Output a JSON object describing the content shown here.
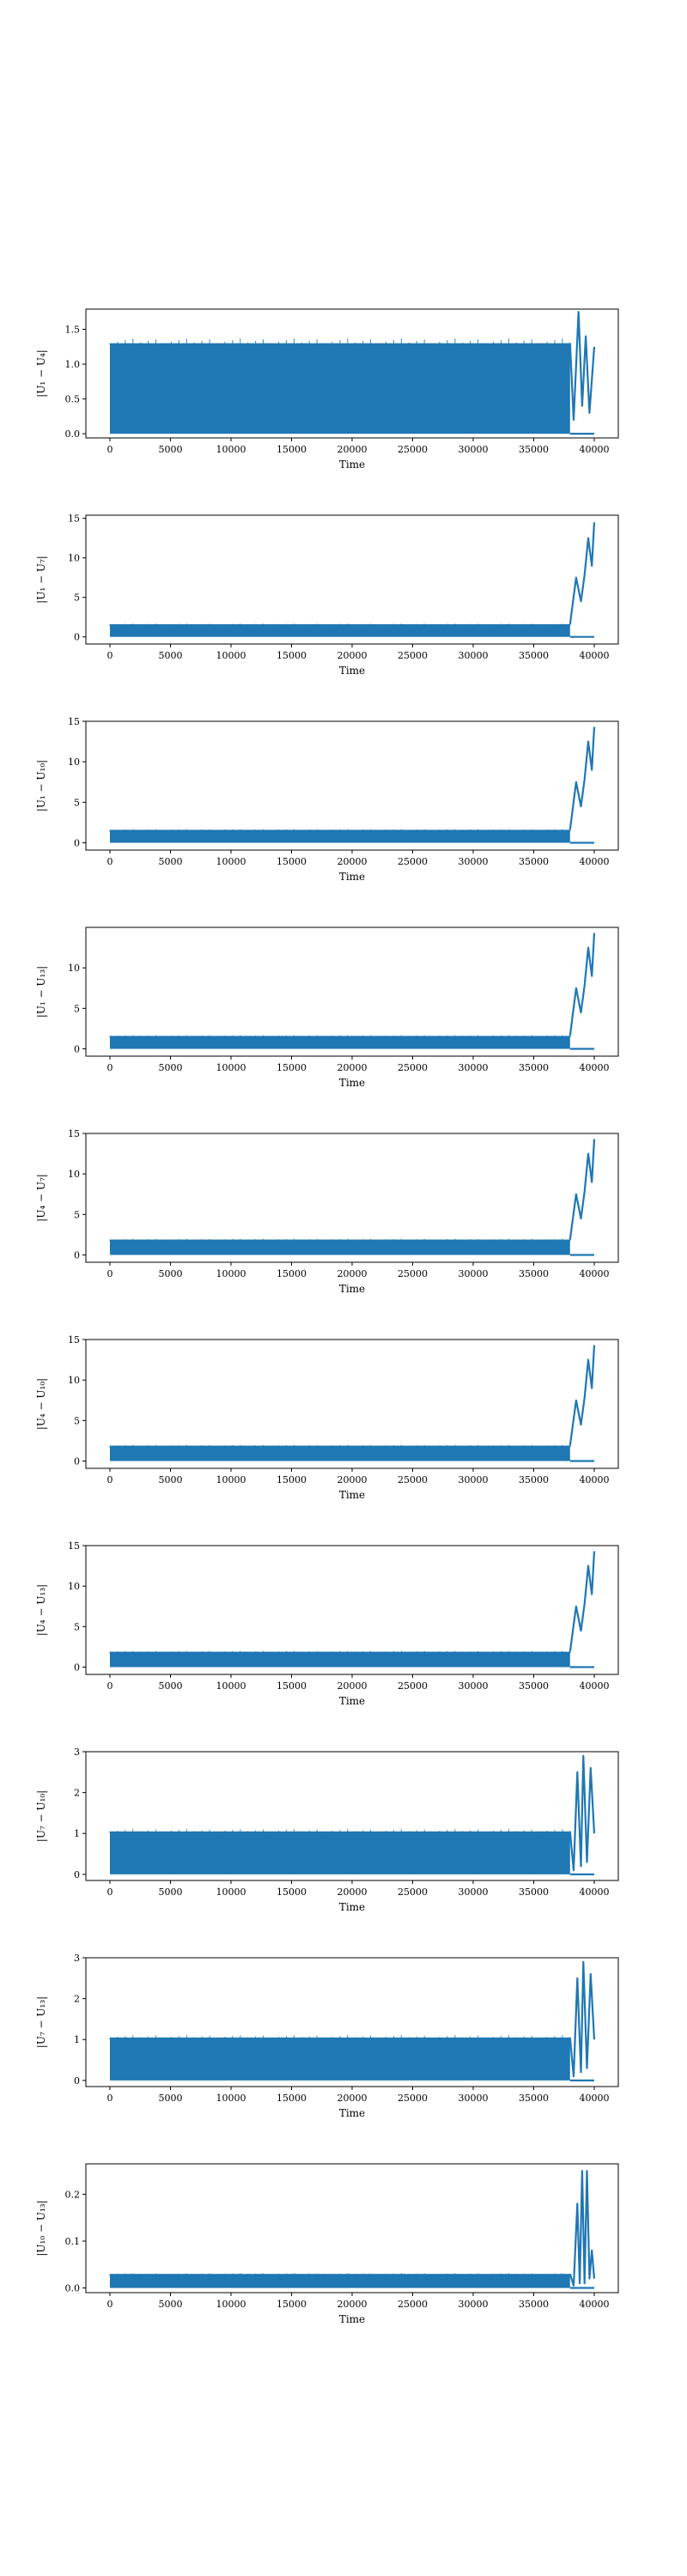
{
  "chart_data": [
    {
      "type": "line",
      "ylabel": "|U₁ − U₄|",
      "xlabel": "Time",
      "xlim": [
        0,
        40000
      ],
      "xticks": [
        0,
        5000,
        10000,
        15000,
        20000,
        25000,
        30000,
        35000,
        40000
      ],
      "ylim": [
        -0.06,
        1.79
      ],
      "yticks": [
        "0.0",
        "0.5",
        "1.0",
        "1.5"
      ],
      "ytick_values": [
        0,
        0.5,
        1.0,
        1.5
      ],
      "band": [
        0,
        1.3
      ],
      "end_segment": [
        [
          38000,
          1.3
        ],
        [
          38300,
          0.2
        ],
        [
          38700,
          1.75
        ],
        [
          39000,
          0.4
        ],
        [
          39300,
          1.4
        ],
        [
          39600,
          0.3
        ],
        [
          40000,
          1.25
        ]
      ],
      "color": "#1f77b4"
    },
    {
      "type": "line",
      "ylabel": "|U₁ − U₇|",
      "xlabel": "Time",
      "xlim": [
        0,
        40000
      ],
      "xticks": [
        0,
        5000,
        10000,
        15000,
        20000,
        25000,
        30000,
        35000,
        40000
      ],
      "ylim": [
        -0.9,
        15.4
      ],
      "yticks": [
        "0",
        "5",
        "10",
        "15"
      ],
      "ytick_values": [
        0,
        5,
        10,
        15
      ],
      "band": [
        0,
        1.6
      ],
      "end_segment": [
        [
          38000,
          1.6
        ],
        [
          38500,
          7.5
        ],
        [
          38900,
          4.5
        ],
        [
          39200,
          7.8
        ],
        [
          39500,
          12.5
        ],
        [
          39800,
          9.0
        ],
        [
          40000,
          14.5
        ]
      ],
      "color": "#1f77b4"
    },
    {
      "type": "line",
      "ylabel": "|U₁ − U₁₀|",
      "xlabel": "Time",
      "xlim": [
        0,
        40000
      ],
      "xticks": [
        0,
        5000,
        10000,
        15000,
        20000,
        25000,
        30000,
        35000,
        40000
      ],
      "ylim": [
        -0.9,
        15.0
      ],
      "yticks": [
        "0",
        "5",
        "10",
        "15"
      ],
      "ytick_values": [
        0,
        5,
        10,
        15
      ],
      "band": [
        0,
        1.6
      ],
      "end_segment": [
        [
          38000,
          1.6
        ],
        [
          38500,
          7.5
        ],
        [
          38900,
          4.5
        ],
        [
          39200,
          7.8
        ],
        [
          39500,
          12.5
        ],
        [
          39800,
          9.0
        ],
        [
          40000,
          14.3
        ]
      ],
      "color": "#1f77b4"
    },
    {
      "type": "line",
      "ylabel": "|U₁ − U₁₃|",
      "xlabel": "Time",
      "xlim": [
        0,
        40000
      ],
      "xticks": [
        0,
        5000,
        10000,
        15000,
        20000,
        25000,
        30000,
        35000,
        40000
      ],
      "ylim": [
        -0.9,
        15.0
      ],
      "yticks": [
        "0",
        "5",
        "10"
      ],
      "ytick_values": [
        0,
        5,
        10
      ],
      "band": [
        0,
        1.6
      ],
      "end_segment": [
        [
          38000,
          1.6
        ],
        [
          38500,
          7.5
        ],
        [
          38900,
          4.5
        ],
        [
          39200,
          7.8
        ],
        [
          39500,
          12.5
        ],
        [
          39800,
          9.0
        ],
        [
          40000,
          14.3
        ]
      ],
      "color": "#1f77b4"
    },
    {
      "type": "line",
      "ylabel": "|U₄ − U₇|",
      "xlabel": "Time",
      "xlim": [
        0,
        40000
      ],
      "xticks": [
        0,
        5000,
        10000,
        15000,
        20000,
        25000,
        30000,
        35000,
        40000
      ],
      "ylim": [
        -0.9,
        15.0
      ],
      "yticks": [
        "0",
        "5",
        "10",
        "15"
      ],
      "ytick_values": [
        0,
        5,
        10,
        15
      ],
      "band": [
        0,
        1.9
      ],
      "end_segment": [
        [
          38000,
          1.9
        ],
        [
          38500,
          7.5
        ],
        [
          38900,
          4.5
        ],
        [
          39200,
          7.8
        ],
        [
          39500,
          12.5
        ],
        [
          39800,
          9.0
        ],
        [
          40000,
          14.3
        ]
      ],
      "color": "#1f77b4"
    },
    {
      "type": "line",
      "ylabel": "|U₄ − U₁₀|",
      "xlabel": "Time",
      "xlim": [
        0,
        40000
      ],
      "xticks": [
        0,
        5000,
        10000,
        15000,
        20000,
        25000,
        30000,
        35000,
        40000
      ],
      "ylim": [
        -0.9,
        15.0
      ],
      "yticks": [
        "0",
        "5",
        "10",
        "15"
      ],
      "ytick_values": [
        0,
        5,
        10,
        15
      ],
      "band": [
        0,
        1.9
      ],
      "end_segment": [
        [
          38000,
          1.9
        ],
        [
          38500,
          7.5
        ],
        [
          38900,
          4.5
        ],
        [
          39200,
          7.8
        ],
        [
          39500,
          12.5
        ],
        [
          39800,
          9.0
        ],
        [
          40000,
          14.3
        ]
      ],
      "color": "#1f77b4"
    },
    {
      "type": "line",
      "ylabel": "|U₄ − U₁₃|",
      "xlabel": "Time",
      "xlim": [
        0,
        40000
      ],
      "xticks": [
        0,
        5000,
        10000,
        15000,
        20000,
        25000,
        30000,
        35000,
        40000
      ],
      "ylim": [
        -0.9,
        15.0
      ],
      "yticks": [
        "0",
        "5",
        "10",
        "15"
      ],
      "ytick_values": [
        0,
        5,
        10,
        15
      ],
      "band": [
        0,
        1.9
      ],
      "end_segment": [
        [
          38000,
          1.9
        ],
        [
          38500,
          7.5
        ],
        [
          38900,
          4.5
        ],
        [
          39200,
          7.8
        ],
        [
          39500,
          12.5
        ],
        [
          39800,
          9.0
        ],
        [
          40000,
          14.3
        ]
      ],
      "color": "#1f77b4"
    },
    {
      "type": "line",
      "ylabel": "|U₇ − U₁₀|",
      "xlabel": "Time",
      "xlim": [
        0,
        40000
      ],
      "xticks": [
        0,
        5000,
        10000,
        15000,
        20000,
        25000,
        30000,
        35000,
        40000
      ],
      "ylim": [
        -0.15,
        3.0
      ],
      "yticks": [
        "0",
        "1",
        "2",
        "3"
      ],
      "ytick_values": [
        0,
        1,
        2,
        3
      ],
      "band": [
        0,
        1.05
      ],
      "end_segment": [
        [
          38000,
          1.05
        ],
        [
          38300,
          0.1
        ],
        [
          38600,
          2.5
        ],
        [
          38900,
          0.2
        ],
        [
          39100,
          2.9
        ],
        [
          39400,
          0.3
        ],
        [
          39700,
          2.6
        ],
        [
          40000,
          1.0
        ]
      ],
      "color": "#1f77b4"
    },
    {
      "type": "line",
      "ylabel": "|U₇ − U₁₃|",
      "xlabel": "Time",
      "xlim": [
        0,
        40000
      ],
      "xticks": [
        0,
        5000,
        10000,
        15000,
        20000,
        25000,
        30000,
        35000,
        40000
      ],
      "ylim": [
        -0.15,
        3.0
      ],
      "yticks": [
        "0",
        "1",
        "2",
        "3"
      ],
      "ytick_values": [
        0,
        1,
        2,
        3
      ],
      "band": [
        0,
        1.05
      ],
      "end_segment": [
        [
          38000,
          1.05
        ],
        [
          38300,
          0.1
        ],
        [
          38600,
          2.5
        ],
        [
          38900,
          0.2
        ],
        [
          39100,
          2.9
        ],
        [
          39400,
          0.3
        ],
        [
          39700,
          2.6
        ],
        [
          40000,
          1.0
        ]
      ],
      "color": "#1f77b4"
    },
    {
      "type": "line",
      "ylabel": "|U₁₀ − U₁₃|",
      "xlabel": "Time",
      "xlim": [
        0,
        40000
      ],
      "xticks": [
        0,
        5000,
        10000,
        15000,
        20000,
        25000,
        30000,
        35000,
        40000
      ],
      "ylim": [
        -0.01,
        0.265
      ],
      "yticks": [
        "0.0",
        "0.1",
        "0.2"
      ],
      "ytick_values": [
        0,
        0.1,
        0.2
      ],
      "band": [
        0,
        0.03
      ],
      "end_segment": [
        [
          38000,
          0.03
        ],
        [
          38300,
          0.005
        ],
        [
          38600,
          0.18
        ],
        [
          38800,
          0.01
        ],
        [
          39000,
          0.25
        ],
        [
          39200,
          0.01
        ],
        [
          39400,
          0.25
        ],
        [
          39600,
          0.02
        ],
        [
          39800,
          0.08
        ],
        [
          40000,
          0.02
        ]
      ],
      "color": "#1f77b4"
    }
  ]
}
